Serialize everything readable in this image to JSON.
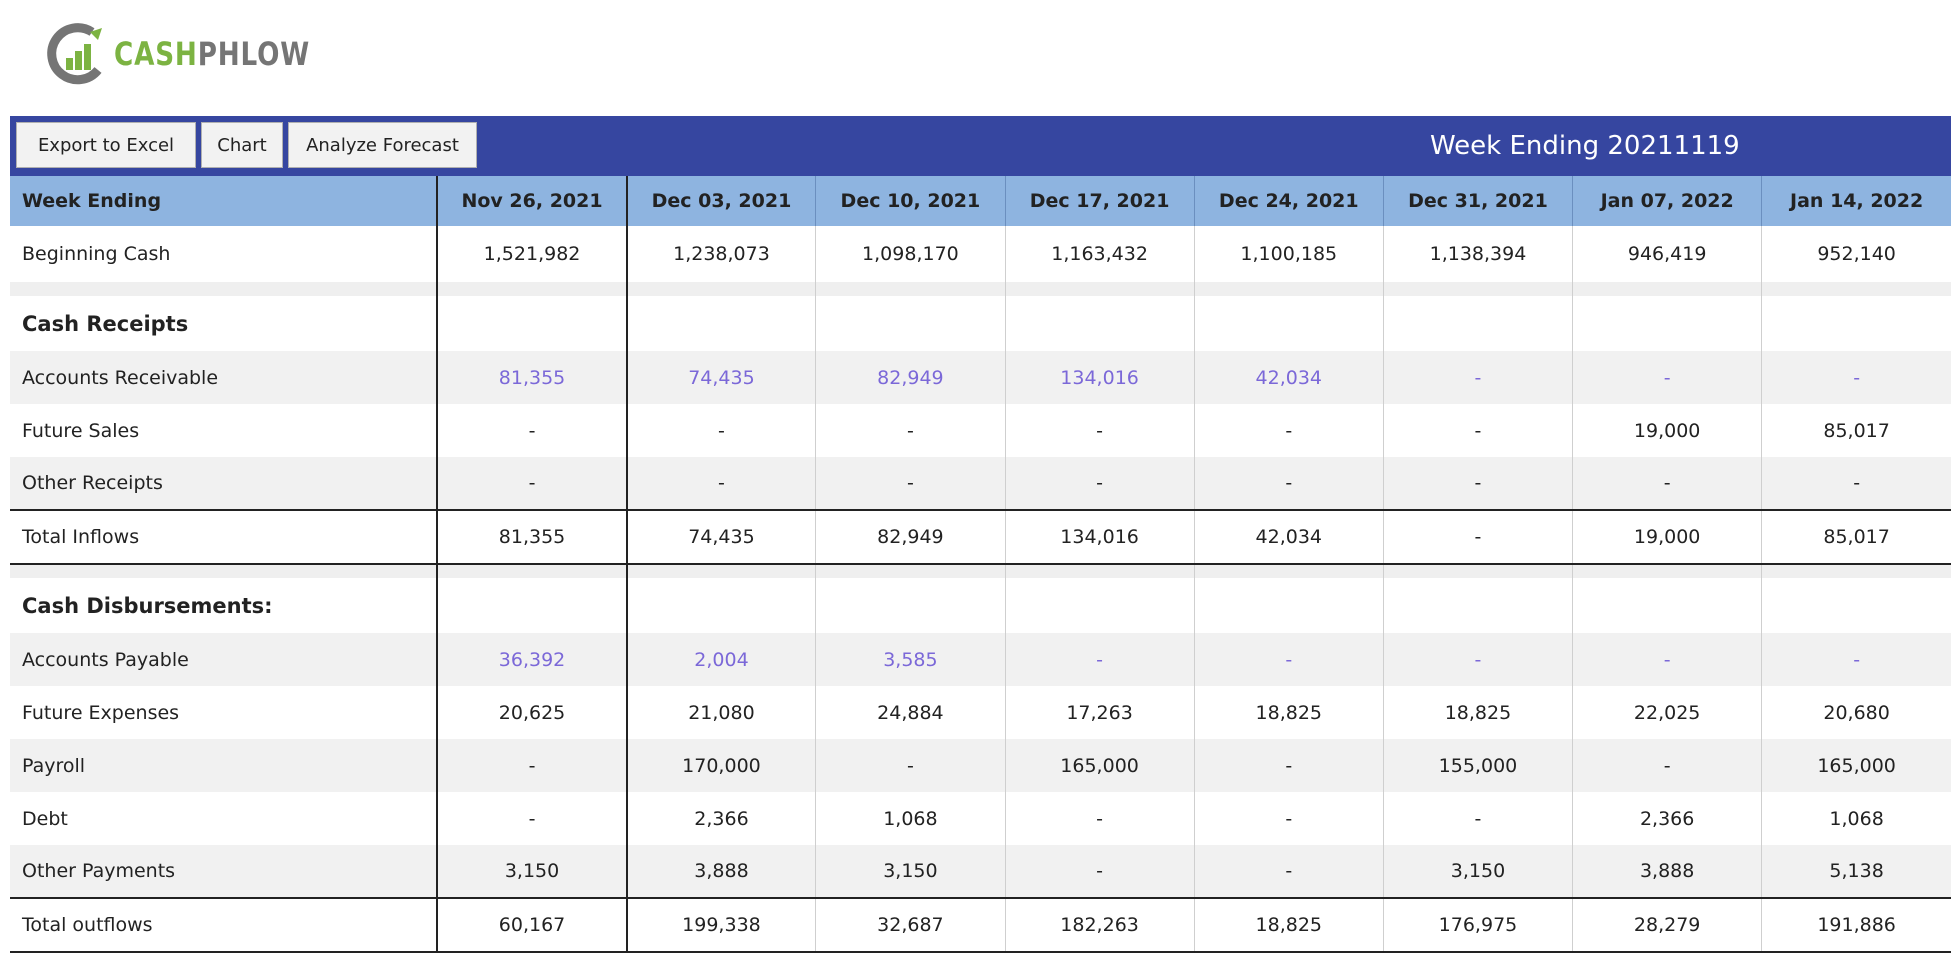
{
  "logo": {
    "text_cash": "CASH",
    "text_phlow": "PHLOW",
    "colors": {
      "green": "#7cb342",
      "gray": "#757575"
    }
  },
  "toolbar": {
    "buttons": [
      "Export to Excel",
      "Chart",
      "Analyze Forecast"
    ],
    "title": "Week Ending 20211119",
    "background": "#3646a0"
  },
  "table": {
    "header_label": "Week Ending",
    "dates": [
      "Nov 26, 2021",
      "Dec 03, 2021",
      "Dec 10, 2021",
      "Dec 17, 2021",
      "Dec 24, 2021",
      "Dec 31, 2021",
      "Jan 07, 2022",
      "Jan 14, 2022"
    ],
    "beginning_cash": {
      "label": "Beginning Cash",
      "values": [
        "1,521,982",
        "1,238,073",
        "1,098,170",
        "1,163,432",
        "1,100,185",
        "1,138,394",
        "946,419",
        "952,140"
      ]
    },
    "receipts": {
      "heading": "Cash Receipts",
      "rows": [
        {
          "label": "Accounts Receivable",
          "link": true,
          "values": [
            "81,355",
            "74,435",
            "82,949",
            "134,016",
            "42,034",
            "-",
            "-",
            "-"
          ]
        },
        {
          "label": "Future Sales",
          "link": false,
          "values": [
            "-",
            "-",
            "-",
            "-",
            "-",
            "-",
            "19,000",
            "85,017"
          ]
        },
        {
          "label": "Other Receipts",
          "link": false,
          "values": [
            "-",
            "-",
            "-",
            "-",
            "-",
            "-",
            "-",
            "-"
          ]
        }
      ],
      "total": {
        "label": "Total Inflows",
        "values": [
          "81,355",
          "74,435",
          "82,949",
          "134,016",
          "42,034",
          "-",
          "19,000",
          "85,017"
        ]
      }
    },
    "disbursements": {
      "heading": "Cash Disbursements:",
      "rows": [
        {
          "label": "Accounts Payable",
          "link": true,
          "values": [
            "36,392",
            "2,004",
            "3,585",
            "-",
            "-",
            "-",
            "-",
            "-"
          ]
        },
        {
          "label": "Future Expenses",
          "link": false,
          "values": [
            "20,625",
            "21,080",
            "24,884",
            "17,263",
            "18,825",
            "18,825",
            "22,025",
            "20,680"
          ]
        },
        {
          "label": "Payroll",
          "link": false,
          "values": [
            "-",
            "170,000",
            "-",
            "165,000",
            "-",
            "155,000",
            "-",
            "165,000"
          ]
        },
        {
          "label": "Debt",
          "link": false,
          "values": [
            "-",
            "2,366",
            "1,068",
            "-",
            "-",
            "-",
            "2,366",
            "1,068"
          ]
        },
        {
          "label": "Other Payments",
          "link": false,
          "values": [
            "3,150",
            "3,888",
            "3,150",
            "-",
            "-",
            "3,150",
            "3,888",
            "5,138"
          ]
        }
      ],
      "total": {
        "label": "Total outflows",
        "values": [
          "60,167",
          "199,338",
          "32,687",
          "182,263",
          "18,825",
          "176,975",
          "28,279",
          "191,886"
        ]
      }
    },
    "colors": {
      "header_bg": "#8eb4e0",
      "link": "#7b68d8",
      "shade": "#f1f1f1"
    }
  }
}
